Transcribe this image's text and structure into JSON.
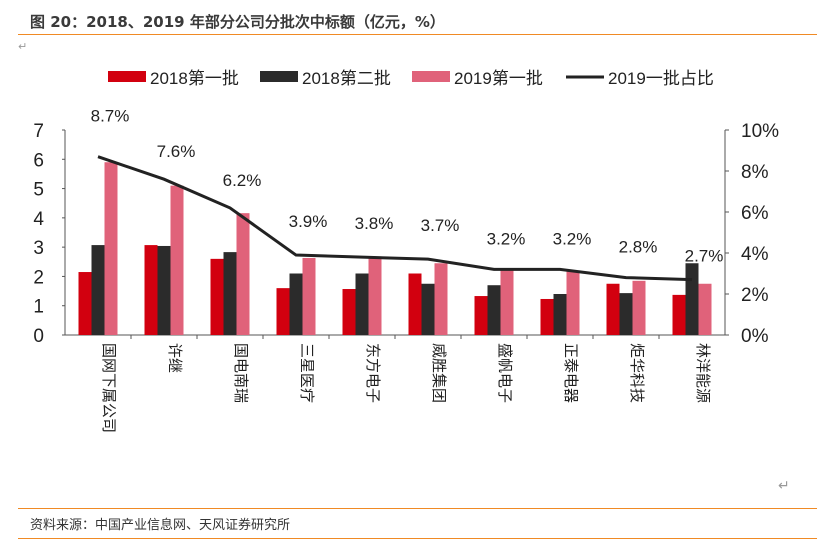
{
  "title": "图 20：2018、2019 年部分公司分批次中标额（亿元，%）",
  "footer": "资料来源：中国产业信息网、天风证券研究所",
  "colors": {
    "s2018_1": "#d2000f",
    "s2018_2": "#2b2b2b",
    "s2019_1": "#e0627a",
    "line": "#222222",
    "rule": "#f08a24"
  },
  "chart_data": {
    "type": "bar",
    "categories": [
      "国网下属公司",
      "许继",
      "国电南瑞",
      "三星医疗",
      "东方电子",
      "威胜集团",
      "盛帆电子",
      "正泰电器",
      "炬华科技",
      "林洋能源"
    ],
    "series": [
      {
        "name": "2018第一批",
        "type": "bar",
        "axis": "left",
        "values": [
          2.15,
          3.07,
          2.6,
          1.6,
          1.57,
          2.1,
          1.33,
          1.23,
          1.75,
          1.37
        ]
      },
      {
        "name": "2018第二批",
        "type": "bar",
        "axis": "left",
        "values": [
          3.07,
          3.04,
          2.83,
          2.1,
          2.1,
          1.75,
          1.7,
          1.4,
          1.43,
          2.45
        ]
      },
      {
        "name": "2019第一批",
        "type": "bar",
        "axis": "left",
        "values": [
          5.9,
          5.1,
          4.16,
          2.63,
          2.63,
          2.45,
          2.25,
          2.2,
          1.85,
          1.75
        ]
      },
      {
        "name": "2019一批占比",
        "type": "line",
        "axis": "right",
        "values": [
          8.7,
          7.6,
          6.2,
          3.9,
          3.8,
          3.7,
          3.2,
          3.2,
          2.8,
          2.7
        ],
        "labels": [
          "8.7%",
          "7.6%",
          "6.2%",
          "3.9%",
          "3.8%",
          "3.7%",
          "3.2%",
          "3.2%",
          "2.8%",
          "2.7%"
        ]
      }
    ],
    "left_axis": {
      "range": [
        0,
        7
      ],
      "ticks": [
        "0",
        "1",
        "2",
        "3",
        "4",
        "5",
        "6",
        "7"
      ]
    },
    "right_axis": {
      "range": [
        0,
        10
      ],
      "ticks": [
        "0%",
        "2%",
        "4%",
        "6%",
        "8%",
        "10%"
      ]
    },
    "legend_position": "top",
    "grid": false
  }
}
